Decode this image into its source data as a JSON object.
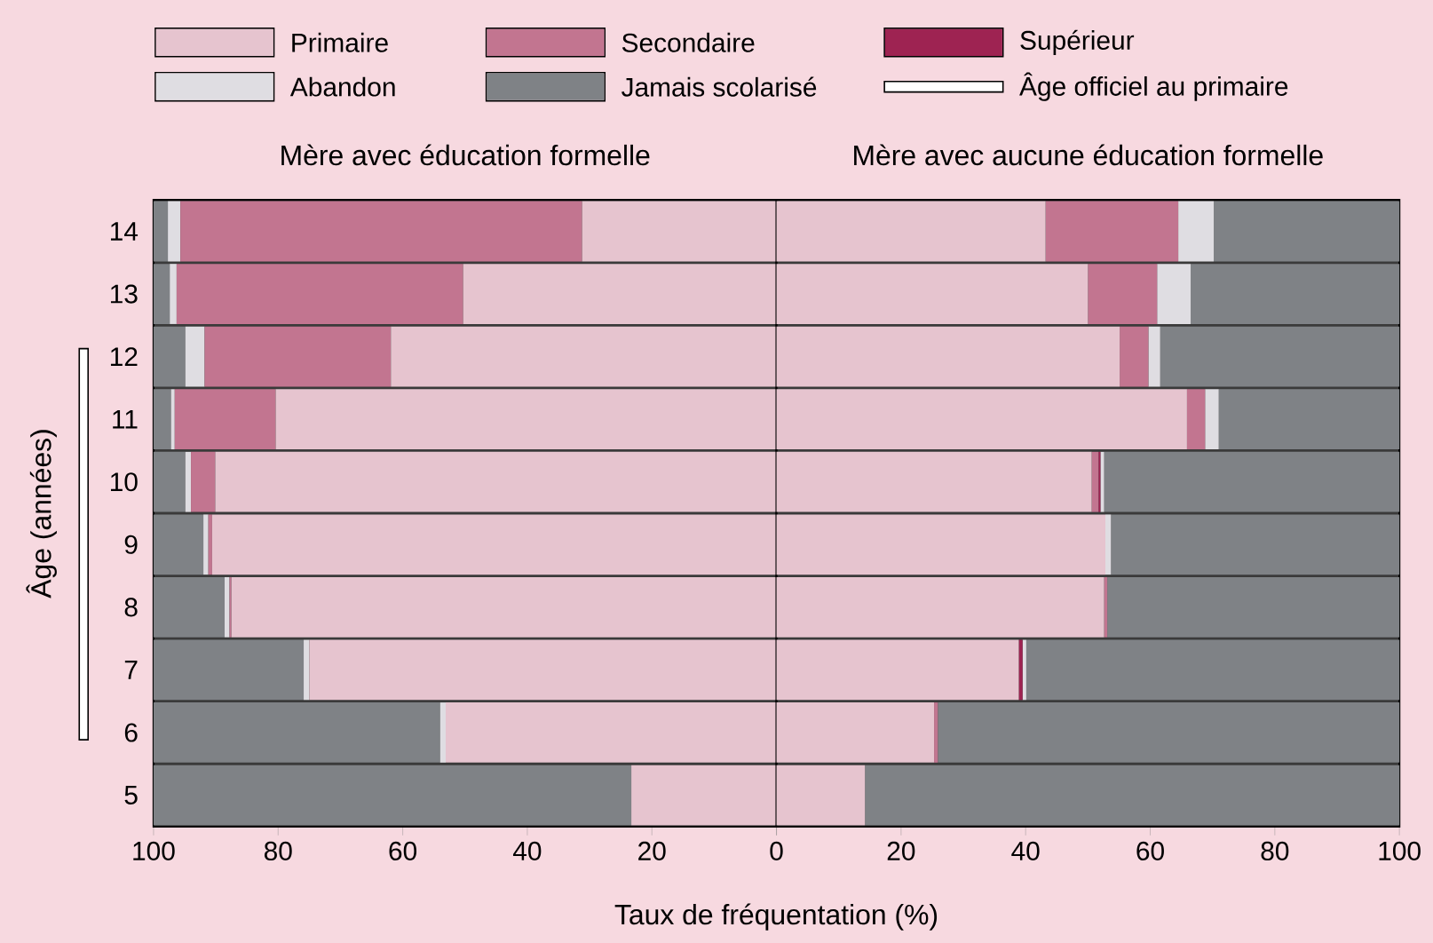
{
  "chart_data": [
    {
      "type": "bar",
      "orientation": "horizontal",
      "stacked": true,
      "title": "Mère avec éducation formelle",
      "xlabel": "Taux de fréquentation (%)",
      "ylabel": "Âge (années)",
      "legend": "top",
      "categories": [
        "14",
        "13",
        "12",
        "11",
        "10",
        "9",
        "8",
        "7",
        "6",
        "5"
      ],
      "xlim": [
        100,
        0
      ],
      "xticks": [
        100,
        80,
        60,
        40,
        20,
        0
      ],
      "series": [
        {
          "name": "Primaire",
          "color": "#e6c4cf",
          "values": [
            31.2,
            50.3,
            61.9,
            80.4,
            90.1,
            90.6,
            87.5,
            75.0,
            53.1,
            23.3
          ]
        },
        {
          "name": "Secondaire",
          "color": "#c27590",
          "values": [
            64.5,
            46.0,
            29.9,
            16.2,
            3.9,
            0.6,
            0.3,
            0,
            0,
            0
          ]
        },
        {
          "name": "Supérieur",
          "color": "#9e2352",
          "values": [
            0,
            0,
            0,
            0,
            0,
            0,
            0,
            0,
            0,
            0
          ]
        },
        {
          "name": "Abandon",
          "color": "#dfdde2",
          "values": [
            2.0,
            1.1,
            3.1,
            0.6,
            0.9,
            0.8,
            0.8,
            0.9,
            0.9,
            0
          ]
        },
        {
          "name": "Jamais scolarisé",
          "color": "#7f8286",
          "values": [
            2.3,
            2.6,
            5.1,
            2.8,
            5.1,
            8.0,
            11.4,
            24.1,
            46.0,
            76.7
          ]
        }
      ],
      "annotations": [
        "Âge officiel au primaire"
      ]
    },
    {
      "type": "bar",
      "orientation": "horizontal",
      "stacked": true,
      "title": "Mère avec aucune éducation formelle",
      "tick_labels": "x",
      "categories": [
        "14",
        "13",
        "12",
        "11",
        "10",
        "9",
        "8",
        "7",
        "6",
        "5"
      ],
      "xlim": [
        0,
        100
      ],
      "xticks": [
        {
          "value": 0,
          "label": null
        },
        20,
        40,
        60,
        80,
        100
      ],
      "series": [
        {
          "color": "#e6c4cf",
          "values": [
            43.2,
            50.0,
            55.1,
            65.9,
            50.6,
            52.8,
            52.6,
            38.9,
            25.3,
            14.2
          ]
        },
        {
          "color": "#c27590",
          "values": [
            21.3,
            11.1,
            4.6,
            2.9,
            1.1,
            0,
            0.5,
            0,
            0.6,
            0
          ]
        },
        {
          "color": "#9e2352",
          "values": [
            0,
            0,
            0,
            0,
            0.3,
            0,
            0,
            0.6,
            0,
            0
          ]
        },
        {
          "color": "#dfdde2",
          "values": [
            5.7,
            5.4,
            1.9,
            2.2,
            0.6,
            0.9,
            0,
            0.6,
            0,
            0
          ]
        },
        {
          "color": "#7f8286",
          "values": [
            29.8,
            33.5,
            38.4,
            29.0,
            47.4,
            46.3,
            46.9,
            59.9,
            74.1,
            85.8
          ]
        }
      ]
    }
  ]
}
